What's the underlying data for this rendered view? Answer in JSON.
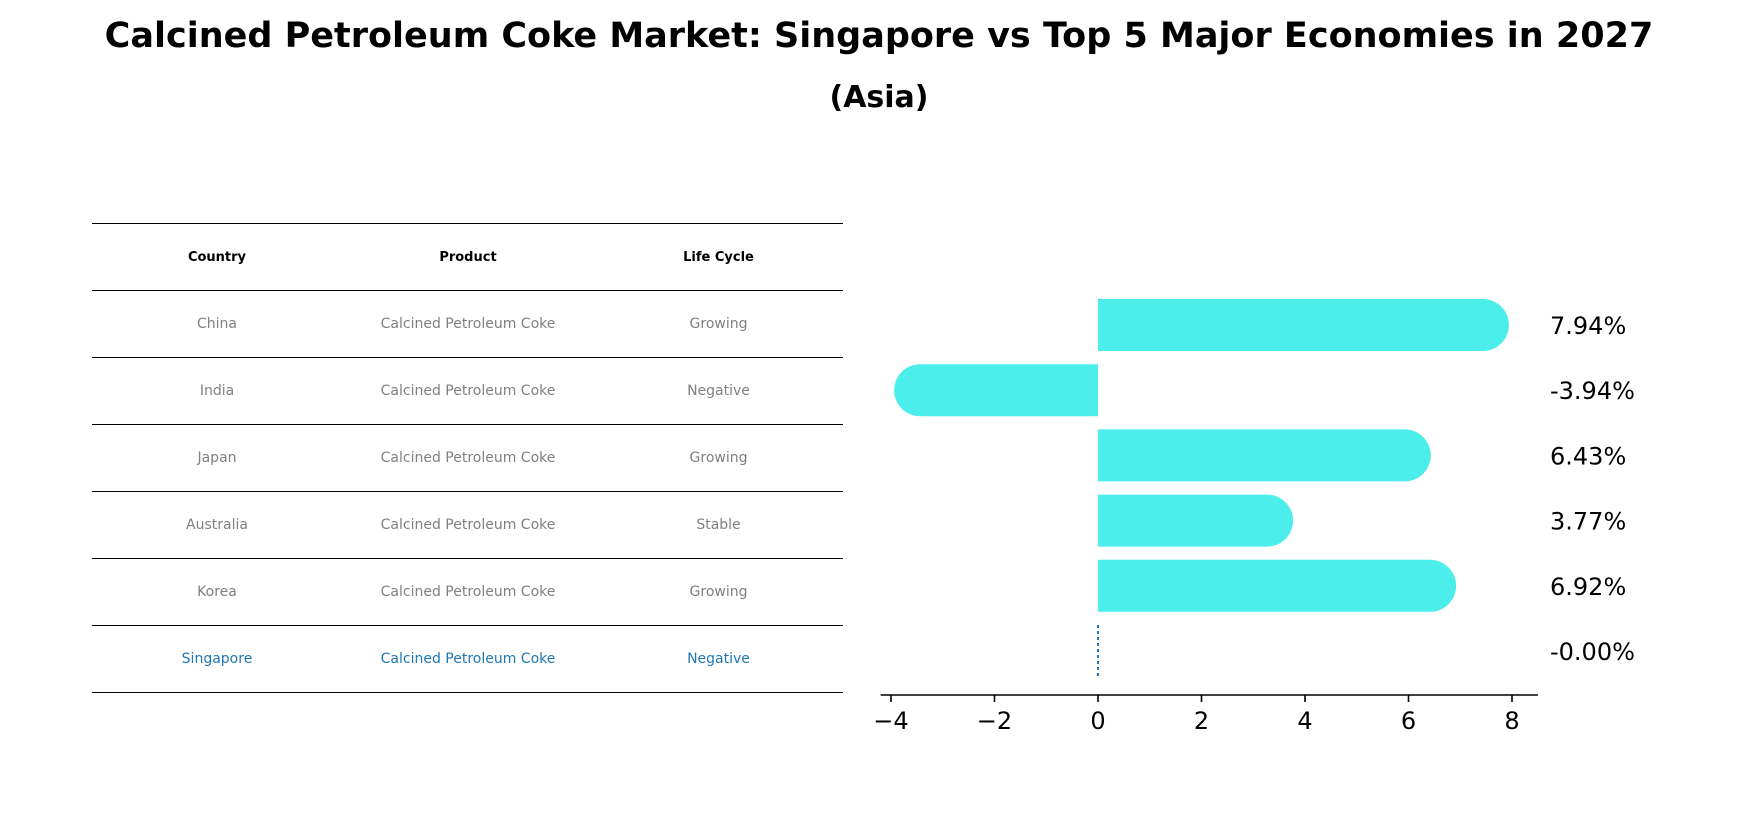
{
  "chart_data": {
    "type": "bar",
    "orientation": "horizontal",
    "title": "Calcined Petroleum Coke Market: Singapore vs Top 5 Major Economies in 2027",
    "subtitle": "(Asia)",
    "categories": [
      "China",
      "India",
      "Japan",
      "Australia",
      "Korea",
      "Singapore"
    ],
    "values": [
      7.94,
      -3.94,
      6.43,
      3.77,
      6.92,
      -0.0
    ],
    "value_labels": [
      "7.94%",
      "-3.94%",
      "6.43%",
      "3.77%",
      "6.92%",
      "-0.00%"
    ],
    "xlim": [
      -4.2,
      8.5
    ],
    "xticks": [
      -4,
      -2,
      0,
      2,
      4,
      6,
      8
    ],
    "xtick_labels": [
      "−4",
      "−2",
      "0",
      "2",
      "4",
      "6",
      "8"
    ],
    "bar_color": "#4beeea",
    "highlight_line_color": "#1f77b4",
    "table": {
      "headers": [
        "Country",
        "Product",
        "Life Cycle"
      ],
      "rows": [
        [
          "China",
          "Calcined Petroleum Coke",
          "Growing"
        ],
        [
          "India",
          "Calcined Petroleum Coke",
          "Negative"
        ],
        [
          "Japan",
          "Calcined Petroleum Coke",
          "Growing"
        ],
        [
          "Australia",
          "Calcined Petroleum Coke",
          "Stable"
        ],
        [
          "Korea",
          "Calcined Petroleum Coke",
          "Growing"
        ],
        [
          "Singapore",
          "Calcined Petroleum Coke",
          "Negative"
        ]
      ],
      "highlight_row": "Singapore",
      "highlight_color": "#1f77b4"
    }
  }
}
